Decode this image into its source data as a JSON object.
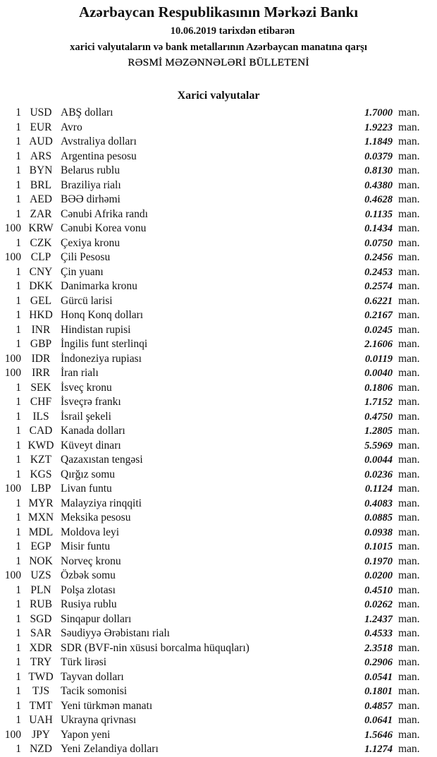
{
  "header": {
    "title": "Azərbaycan Respublikasının Mərkəzi Bankı",
    "date_line": "10.06.2019  tarixdən etibarən",
    "subtitle": "xarici valyutaların və bank metallarının Azərbaycan manatına qarşı",
    "bulletin": "RƏSMİ MƏZƏNNƏLƏRİ BÜLLETENİ"
  },
  "section_title": "Xarici valyutalar",
  "unit_label": "man.",
  "rows": [
    {
      "amount": "1",
      "code": "USD",
      "name": "ABŞ dolları",
      "rate": "1.7000"
    },
    {
      "amount": "1",
      "code": "EUR",
      "name": "Avro",
      "rate": "1.9223"
    },
    {
      "amount": "1",
      "code": "AUD",
      "name": "Avstraliya dolları",
      "rate": "1.1849"
    },
    {
      "amount": "1",
      "code": "ARS",
      "name": "Argentina pesosu",
      "rate": "0.0379"
    },
    {
      "amount": "1",
      "code": "BYN",
      "name": "Belarus rublu",
      "rate": "0.8130"
    },
    {
      "amount": "1",
      "code": "BRL",
      "name": "Braziliya rialı",
      "rate": "0.4380"
    },
    {
      "amount": "1",
      "code": "AED",
      "name": "BƏƏ dirhəmi",
      "rate": "0.4628"
    },
    {
      "amount": "1",
      "code": "ZAR",
      "name": "Cənubi Afrika randı",
      "rate": "0.1135"
    },
    {
      "amount": "100",
      "code": "KRW",
      "name": "Cənubi Korea vonu",
      "rate": "0.1434"
    },
    {
      "amount": "1",
      "code": "CZK",
      "name": "Çexiya kronu",
      "rate": "0.0750"
    },
    {
      "amount": "100",
      "code": "CLP",
      "name": "Çili Pesosu",
      "rate": "0.2456"
    },
    {
      "amount": "1",
      "code": "CNY",
      "name": "Çin yuanı",
      "rate": "0.2453"
    },
    {
      "amount": "1",
      "code": "DKK",
      "name": "Danimarka kronu",
      "rate": "0.2574"
    },
    {
      "amount": "1",
      "code": "GEL",
      "name": "Gürcü larisi",
      "rate": "0.6221"
    },
    {
      "amount": "1",
      "code": "HKD",
      "name": "Honq Konq dolları",
      "rate": "0.2167"
    },
    {
      "amount": "1",
      "code": "INR",
      "name": "Hindistan rupisi",
      "rate": "0.0245"
    },
    {
      "amount": "1",
      "code": "GBP",
      "name": "İngilis funt sterlinqi",
      "rate": "2.1606"
    },
    {
      "amount": "100",
      "code": "IDR",
      "name": "İndoneziya rupiası",
      "rate": "0.0119"
    },
    {
      "amount": "100",
      "code": "IRR",
      "name": "İran rialı",
      "rate": "0.0040"
    },
    {
      "amount": "1",
      "code": "SEK",
      "name": "İsveç kronu",
      "rate": "0.1806"
    },
    {
      "amount": "1",
      "code": "CHF",
      "name": "İsveçrə frankı",
      "rate": "1.7152"
    },
    {
      "amount": "1",
      "code": "ILS",
      "name": "İsrail şekeli",
      "rate": "0.4750"
    },
    {
      "amount": "1",
      "code": "CAD",
      "name": "Kanada dolları",
      "rate": "1.2805"
    },
    {
      "amount": "1",
      "code": "KWD",
      "name": "Küveyt dinarı",
      "rate": "5.5969"
    },
    {
      "amount": "1",
      "code": "KZT",
      "name": "Qazaxıstan tengəsi",
      "rate": "0.0044"
    },
    {
      "amount": "1",
      "code": "KGS",
      "name": "Qırğız somu",
      "rate": "0.0236"
    },
    {
      "amount": "100",
      "code": "LBP",
      "name": "Livan funtu",
      "rate": "0.1124"
    },
    {
      "amount": "1",
      "code": "MYR",
      "name": "Malayziya rinqqiti",
      "rate": "0.4083"
    },
    {
      "amount": "1",
      "code": "MXN",
      "name": "Meksika pesosu",
      "rate": "0.0885"
    },
    {
      "amount": "1",
      "code": "MDL",
      "name": "Moldova leyi",
      "rate": "0.0938"
    },
    {
      "amount": "1",
      "code": "EGP",
      "name": "Misir funtu",
      "rate": "0.1015"
    },
    {
      "amount": "1",
      "code": "NOK",
      "name": "Norveç kronu",
      "rate": "0.1970"
    },
    {
      "amount": "100",
      "code": "UZS",
      "name": "Özbək somu",
      "rate": "0.0200"
    },
    {
      "amount": "1",
      "code": "PLN",
      "name": "Polşa zlotası",
      "rate": "0.4510"
    },
    {
      "amount": "1",
      "code": "RUB",
      "name": "Rusiya rublu",
      "rate": "0.0262"
    },
    {
      "amount": "1",
      "code": "SGD",
      "name": "Sinqapur dolları",
      "rate": "1.2437"
    },
    {
      "amount": "1",
      "code": "SAR",
      "name": "Səudiyyə Ərəbistanı rialı",
      "rate": "0.4533"
    },
    {
      "amount": "1",
      "code": "XDR",
      "name": "SDR (BVF-nin xüsusi borcalma hüquqları)",
      "rate": "2.3518"
    },
    {
      "amount": "1",
      "code": "TRY",
      "name": "Türk lirəsi",
      "rate": "0.2906"
    },
    {
      "amount": "1",
      "code": "TWD",
      "name": "Tayvan dolları",
      "rate": "0.0541"
    },
    {
      "amount": "1",
      "code": "TJS",
      "name": "Tacik somonisi",
      "rate": "0.1801"
    },
    {
      "amount": "1",
      "code": "TMT",
      "name": "Yeni türkmən manatı",
      "rate": "0.4857"
    },
    {
      "amount": "1",
      "code": "UAH",
      "name": "Ukrayna qrivnası",
      "rate": "0.0641"
    },
    {
      "amount": "100",
      "code": "JPY",
      "name": "Yapon yeni",
      "rate": "1.5646"
    },
    {
      "amount": "1",
      "code": "NZD",
      "name": "Yeni Zelandiya dolları",
      "rate": "1.1274"
    }
  ]
}
